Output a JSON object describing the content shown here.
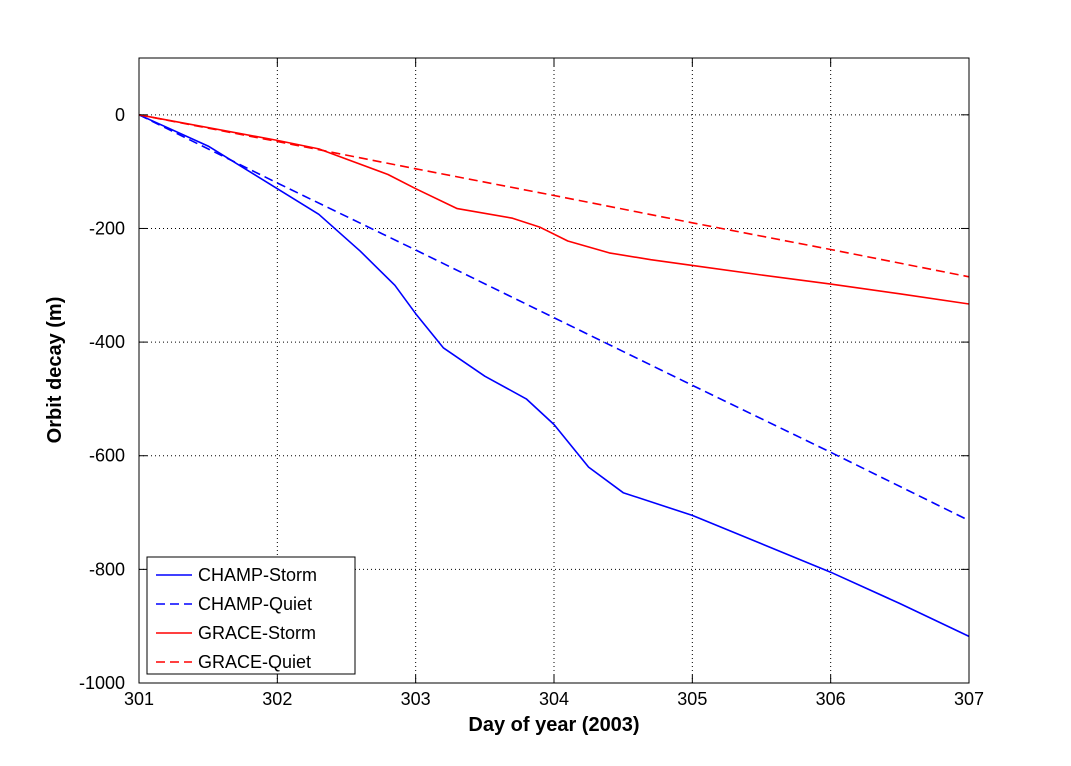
{
  "chart_data": {
    "type": "line",
    "title": "",
    "xlabel": "Day of year (2003)",
    "ylabel": "Orbit decay (m)",
    "xlim": [
      301,
      307
    ],
    "ylim": [
      -1000,
      100
    ],
    "xticks": [
      301,
      302,
      303,
      304,
      305,
      306,
      307
    ],
    "yticks": [
      -1000,
      -800,
      -600,
      -400,
      -200,
      0
    ],
    "grid": true,
    "legend_position": "bottom-left",
    "series": [
      {
        "name": "CHAMP-Storm",
        "color": "#0000ff",
        "style": "solid",
        "x": [
          301,
          301.5,
          302,
          302.3,
          302.6,
          302.85,
          303,
          303.2,
          303.5,
          303.8,
          304,
          304.25,
          304.5,
          305,
          305.5,
          306,
          306.5,
          307
        ],
        "y": [
          0,
          -55,
          -130,
          -175,
          -240,
          -300,
          -350,
          -410,
          -460,
          -500,
          -545,
          -620,
          -665,
          -705,
          -755,
          -805,
          -860,
          -918
        ]
      },
      {
        "name": "CHAMP-Quiet",
        "color": "#0000ff",
        "style": "dashed",
        "x": [
          301,
          302,
          303,
          304,
          305,
          306,
          307
        ],
        "y": [
          0,
          -120,
          -238,
          -357,
          -476,
          -594,
          -714
        ]
      },
      {
        "name": "GRACE-Storm",
        "color": "#ff0000",
        "style": "solid",
        "x": [
          301,
          302,
          302.3,
          302.8,
          303,
          303.3,
          303.7,
          303.9,
          304.1,
          304.4,
          304.7,
          305,
          305.5,
          306,
          306.5,
          307
        ],
        "y": [
          0,
          -45,
          -60,
          -105,
          -130,
          -165,
          -182,
          -198,
          -222,
          -243,
          -255,
          -265,
          -282,
          -298,
          -315,
          -333
        ]
      },
      {
        "name": "GRACE-Quiet",
        "color": "#ff0000",
        "style": "dashed",
        "x": [
          301,
          302,
          303,
          304,
          305,
          306,
          307
        ],
        "y": [
          0,
          -47,
          -95,
          -142,
          -190,
          -237,
          -285
        ]
      }
    ]
  }
}
